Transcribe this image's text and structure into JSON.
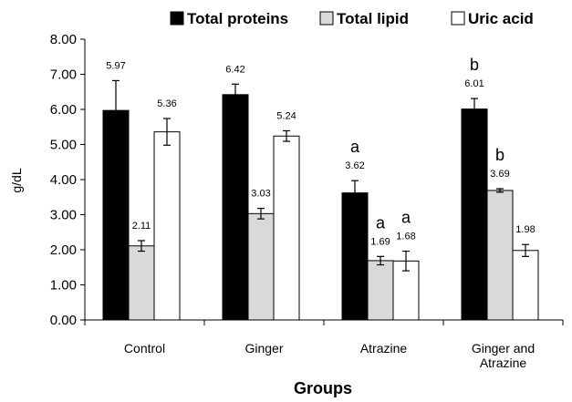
{
  "chart_data": {
    "type": "bar",
    "title": "",
    "xlabel": "Groups",
    "ylabel": "g/dL",
    "ylim": [
      0,
      8
    ],
    "ytick_step": 1,
    "ytick_labels": [
      "0.00",
      "1.00",
      "2.00",
      "3.00",
      "4.00",
      "5.00",
      "6.00",
      "7.00",
      "8.00"
    ],
    "grid": false,
    "legend_position": "top",
    "categories": [
      {
        "lines": [
          "Control"
        ]
      },
      {
        "lines": [
          "Ginger"
        ]
      },
      {
        "lines": [
          "Atrazine"
        ]
      },
      {
        "lines": [
          "Ginger  and",
          "Atrazine"
        ]
      }
    ],
    "series": [
      {
        "name": "Total proteins",
        "color": "#000000",
        "values": [
          5.97,
          6.42,
          3.62,
          6.01
        ],
        "value_labels": [
          "5.97",
          "6.42",
          "3.62",
          "6.01"
        ],
        "errors": [
          0.85,
          0.3,
          0.35,
          0.3
        ],
        "significance": [
          "",
          "",
          "a",
          "b"
        ]
      },
      {
        "name": "Total lipid",
        "color": "#d9d9d9",
        "values": [
          2.11,
          3.03,
          1.69,
          3.69
        ],
        "value_labels": [
          "2.11",
          "3.03",
          "1.69",
          "3.69"
        ],
        "errors": [
          0.15,
          0.15,
          0.12,
          0.05
        ],
        "significance": [
          "",
          "",
          "a",
          "b"
        ]
      },
      {
        "name": "Uric acid",
        "color": "#ffffff",
        "values": [
          5.36,
          5.24,
          1.68,
          1.98
        ],
        "value_labels": [
          "5.36",
          "5.24",
          "1.68",
          "1.98"
        ],
        "errors": [
          0.38,
          0.15,
          0.28,
          0.17
        ],
        "significance": [
          "",
          "",
          "a",
          ""
        ]
      }
    ]
  }
}
